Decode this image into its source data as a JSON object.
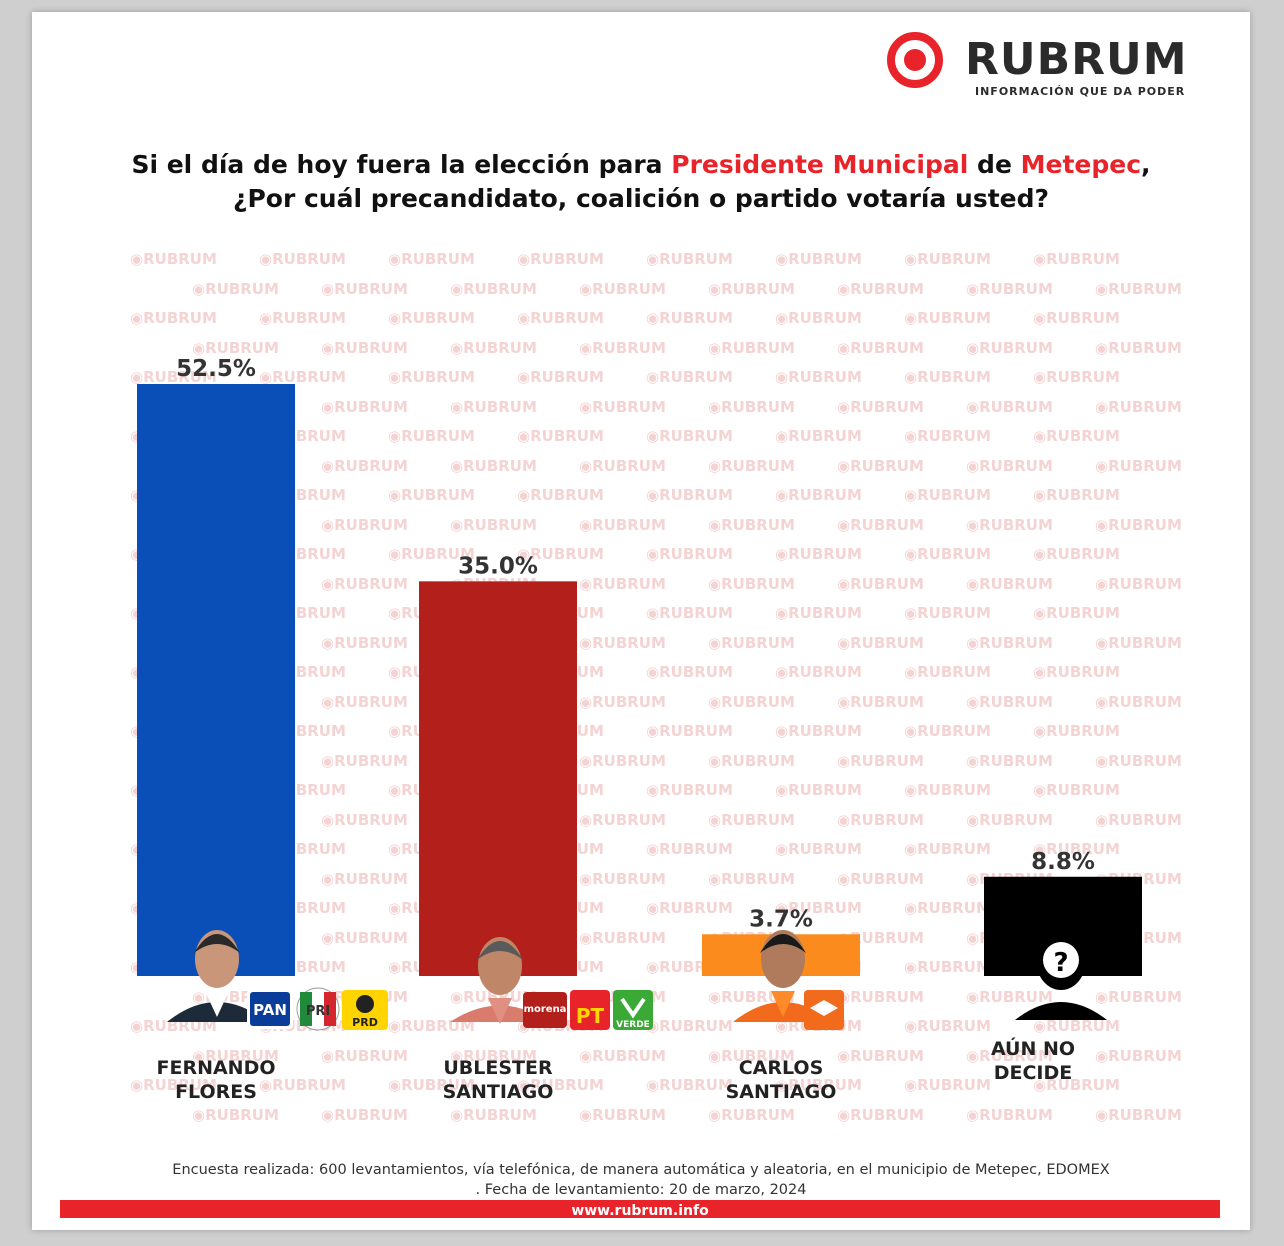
{
  "logo": {
    "name": "RUBRUM",
    "tagline": "INFORMACIÓN QUE DA PODER"
  },
  "title": {
    "line1_prefix": "Si el día de hoy fuera la elección para ",
    "line1_office": "Presidente Municipal",
    "line1_mid": " de ",
    "line1_place": "Metepec",
    "line1_suffix": ",",
    "line2": "¿Por cuál precandidato, coalición o partido votaría usted?"
  },
  "watermark_text": "RUBRUM",
  "chart_data": {
    "type": "bar",
    "categories": [
      "FERNANDO FLORES",
      "UBLESTER SANTIAGO",
      "CARLOS SANTIAGO",
      "AÚN NO DECIDE"
    ],
    "category_lines": [
      [
        "FERNANDO",
        "FLORES"
      ],
      [
        "UBLESTER",
        "SANTIAGO"
      ],
      [
        "CARLOS",
        "SANTIAGO"
      ],
      [
        "AÚN NO",
        "DECIDE"
      ]
    ],
    "values": [
      52.5,
      35.0,
      3.7,
      8.8
    ],
    "value_labels": [
      "52.5%",
      "35.0%",
      "3.7%",
      "8.8%"
    ],
    "colors": [
      "#0a4fb8",
      "#b3201b",
      "#fb8b1c",
      "#000000"
    ],
    "ylim": [
      0,
      52.5
    ],
    "grid": false,
    "legend": "none",
    "party_logos": [
      [
        {
          "label": "PAN",
          "icon": "pan-logo-icon"
        },
        {
          "label": "PRI",
          "icon": "pri-logo-icon"
        },
        {
          "label": "PRD",
          "icon": "prd-logo-icon"
        }
      ],
      [
        {
          "label": "morena",
          "icon": "morena-logo-icon"
        },
        {
          "label": "PT",
          "icon": "pt-logo-icon"
        },
        {
          "label": "VERDE",
          "icon": "verde-logo-icon"
        }
      ],
      [
        {
          "label": "",
          "icon": "movimiento-ciudadano-logo-icon"
        }
      ],
      []
    ]
  },
  "footer": {
    "line1": "Encuesta realizada: 600 levantamientos, vía telefónica, de manera automática y aleatoria, en el municipio de Metepec, EDOMEX",
    "line2": ". Fecha de levantamiento: 20 de marzo, 2024",
    "website": "www.rubrum.info"
  }
}
